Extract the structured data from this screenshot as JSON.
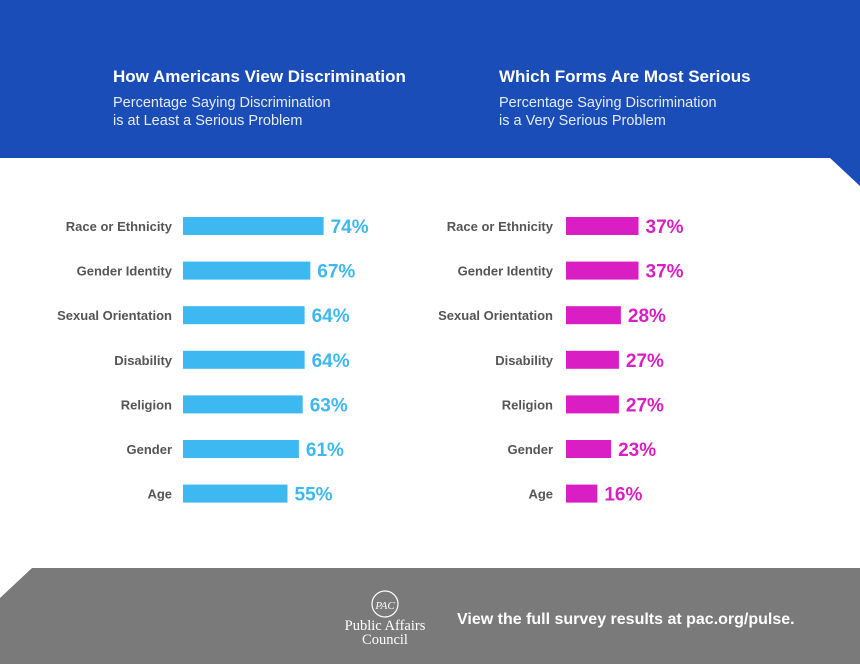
{
  "colors": {
    "header_bg": "#1a4db7",
    "footer_bg": "#7a7a7a",
    "left_bar": "#3db8f0",
    "right_bar": "#d91fc3"
  },
  "chart_data": [
    {
      "type": "bar",
      "orientation": "horizontal",
      "title": "How Americans View Discrimination",
      "subtitle": "Percentage Saying Discrimination is at Least a Serious Problem",
      "categories": [
        "Race or Ethnicity",
        "Gender Identity",
        "Sexual Orientation",
        "Disability",
        "Religion",
        "Gender",
        "Age"
      ],
      "values": [
        74,
        67,
        64,
        64,
        63,
        61,
        55
      ],
      "value_labels": [
        "74%",
        "67%",
        "64%",
        "64%",
        "63%",
        "61%",
        "55%"
      ],
      "xlim": [
        0,
        100
      ],
      "grid": false,
      "color": "#3db8f0"
    },
    {
      "type": "bar",
      "orientation": "horizontal",
      "title": "Which Forms Are Most Serious",
      "subtitle": "Percentage Saying Discrimination is a Very Serious Problem",
      "categories": [
        "Race or Ethnicity",
        "Gender Identity",
        "Sexual Orientation",
        "Disability",
        "Religion",
        "Gender",
        "Age"
      ],
      "values": [
        37,
        37,
        28,
        27,
        27,
        23,
        16
      ],
      "value_labels": [
        "37%",
        "37%",
        "28%",
        "27%",
        "27%",
        "23%",
        "16%"
      ],
      "xlim": [
        0,
        100
      ],
      "grid": false,
      "color": "#d91fc3"
    }
  ],
  "header": {
    "left": {
      "title": "How Americans View Discrimination",
      "subtitle_line1": "Percentage Saying Discrimination",
      "subtitle_line2": "is at Least a Serious Problem"
    },
    "right": {
      "title": "Which Forms Are Most Serious",
      "subtitle_line1": "Percentage Saying Discrimination",
      "subtitle_line2": "is a Very Serious Problem"
    }
  },
  "footer": {
    "logo_monogram": "PAC",
    "logo_line1": "Public Affairs",
    "logo_line2": "Council",
    "cta": "View the full survey results at pac.org/pulse.",
    "logo_icon": "pac-monogram-icon"
  }
}
